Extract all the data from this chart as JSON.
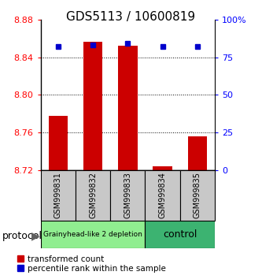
{
  "title": "GDS5113 / 10600819",
  "samples": [
    "GSM999831",
    "GSM999832",
    "GSM999833",
    "GSM999834",
    "GSM999835"
  ],
  "red_values": [
    8.778,
    8.856,
    8.852,
    8.724,
    8.756
  ],
  "blue_values": [
    82,
    83,
    84,
    82,
    82
  ],
  "ymin": 8.72,
  "ymax": 8.88,
  "yticks": [
    8.72,
    8.76,
    8.8,
    8.84,
    8.88
  ],
  "yright_ticks": [
    0,
    25,
    50,
    75,
    100
  ],
  "yright_labels": [
    "0",
    "25",
    "50",
    "75",
    "100%"
  ],
  "groups": [
    {
      "label": "Grainyhead-like 2 depletion",
      "n_samples": 3,
      "color": "#90EE90",
      "text_size": 6.5
    },
    {
      "label": "control",
      "n_samples": 2,
      "color": "#3CB371",
      "text_size": 9
    }
  ],
  "bar_color": "#CC0000",
  "dot_color": "#0000CC",
  "bar_width": 0.55,
  "grid_color": "#000000",
  "bg_color": "#FFFFFF",
  "sample_bg_color": "#C8C8C8",
  "title_fontsize": 11,
  "tick_fontsize": 8,
  "legend_fontsize": 7.5,
  "protocol_fontsize": 9
}
